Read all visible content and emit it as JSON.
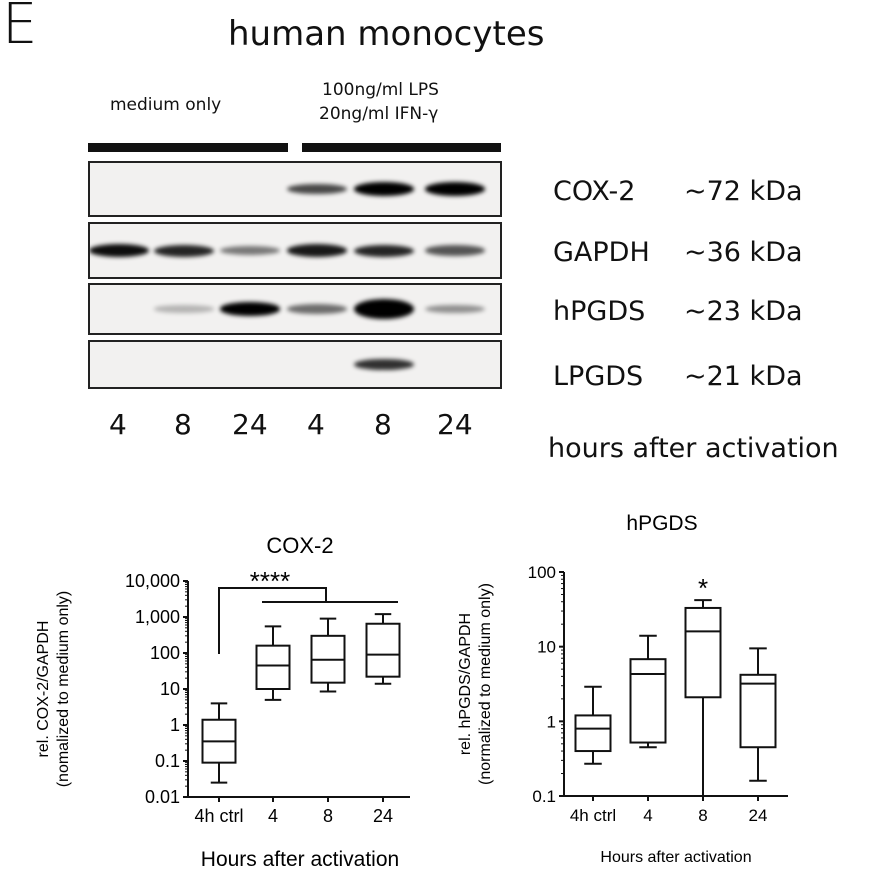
{
  "panel_letter": "E",
  "title": "human monocytes",
  "conditions": {
    "control": "medium only",
    "treatment_line1": "100ng/ml LPS",
    "treatment_line2": "20ng/ml IFN-γ"
  },
  "blot": {
    "lanes": [
      "4",
      "8",
      "24",
      "4",
      "8",
      "24"
    ],
    "lane_caption": "hours after activation",
    "rows": [
      {
        "protein": "COX-2",
        "size": "~72 kDa",
        "band_intensity": [
          0,
          0,
          0,
          0.6,
          0.95,
          0.95
        ]
      },
      {
        "protein": "GAPDH",
        "size": "~36 kDa",
        "band_intensity": [
          0.85,
          0.75,
          0.4,
          0.8,
          0.75,
          0.55
        ]
      },
      {
        "protein": "hPGDS",
        "size": "~23 kDa",
        "band_intensity": [
          0,
          0.15,
          0.9,
          0.45,
          1.0,
          0.3
        ]
      },
      {
        "protein": "LPGDS",
        "size": "~21 kDa",
        "band_intensity": [
          0,
          0,
          0,
          0,
          0.7,
          0
        ]
      }
    ]
  },
  "chart_data": [
    {
      "type": "box",
      "title": "COX-2",
      "ylabel": "rel. COX-2/GAPDH",
      "ylabel2": "(nomalized to medium only)",
      "xlabel": "Hours after activation",
      "yscale": "log",
      "ylim": [
        0.01,
        10000
      ],
      "yticks": [
        "0.01",
        "0.1",
        "1",
        "10",
        "100",
        "1,000",
        "10,000"
      ],
      "categories": [
        "4h ctrl",
        "4",
        "8",
        "24"
      ],
      "boxes": [
        {
          "min": 0.025,
          "q1": 0.09,
          "median": 0.35,
          "q3": 1.4,
          "max": 4
        },
        {
          "min": 5,
          "q1": 10,
          "median": 45,
          "q3": 160,
          "max": 550
        },
        {
          "min": 8.5,
          "q1": 15,
          "median": 65,
          "q3": 300,
          "max": 900
        },
        {
          "min": 14,
          "q1": 22,
          "median": 90,
          "q3": 650,
          "max": 1200
        }
      ],
      "annotation": "****"
    },
    {
      "type": "box",
      "title": "hPGDS",
      "ylabel": "rel. hPGDS/GAPDH",
      "ylabel2": "(normalized to medium only)",
      "xlabel": "Hours after activation",
      "yscale": "log",
      "ylim": [
        0.1,
        100
      ],
      "yticks": [
        "0.1",
        "1",
        "10",
        "100"
      ],
      "categories": [
        "4h ctrl",
        "4",
        "8",
        "24"
      ],
      "boxes": [
        {
          "min": 0.27,
          "q1": 0.4,
          "median": 0.8,
          "q3": 1.2,
          "max": 2.9
        },
        {
          "min": 0.45,
          "q1": 0.52,
          "median": 4.3,
          "q3": 6.8,
          "max": 14
        },
        {
          "min": 0.1,
          "q1": 2.1,
          "median": 16,
          "q3": 33,
          "max": 42
        },
        {
          "min": 0.16,
          "q1": 0.45,
          "median": 3.2,
          "q3": 4.2,
          "max": 9.5
        }
      ],
      "annotation": "*"
    }
  ]
}
